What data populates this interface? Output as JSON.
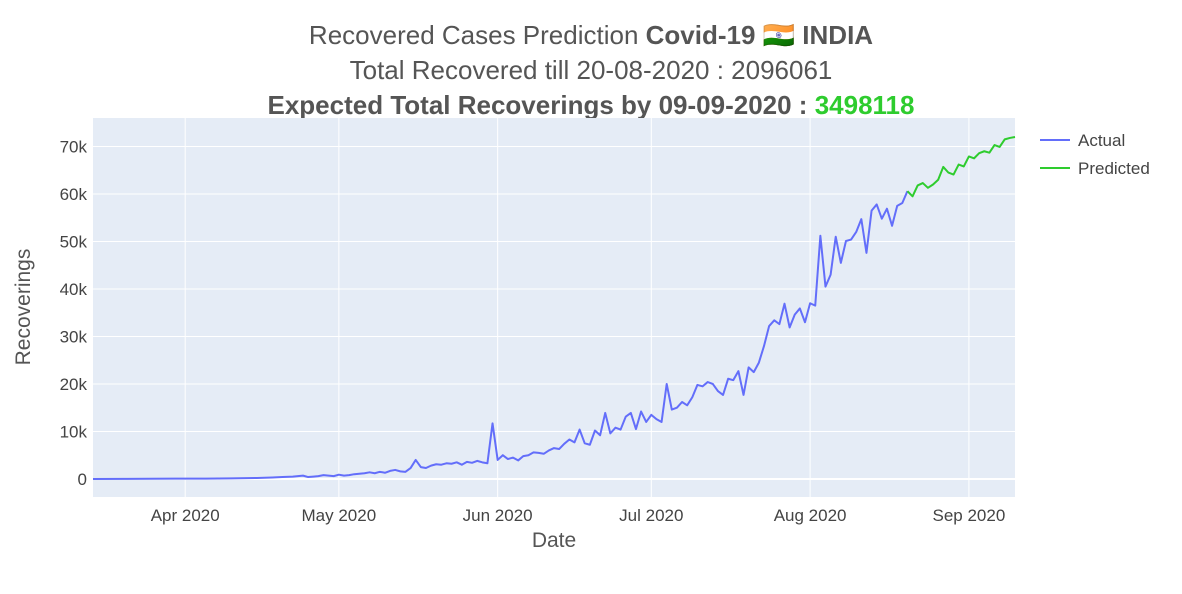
{
  "chart_data": {
    "type": "line",
    "title": {
      "line1_prefix": "Recovered Cases Prediction ",
      "line1_bold": "Covid-19",
      "line1_flag": "🇮🇳",
      "line1_country": "INDIA",
      "line2": "Total Recovered till 20-08-2020 : 2096061",
      "line3_prefix": "Expected Total Recoverings by 09-09-2020 : ",
      "line3_value": "3498118"
    },
    "xlabel": "Date",
    "ylabel": "Recoverings",
    "xlim": [
      "2020-03-14",
      "2020-09-10"
    ],
    "ylim": [
      -3800,
      76000
    ],
    "x_ticks": [
      {
        "date": "2020-04-01",
        "label": "Apr 2020"
      },
      {
        "date": "2020-05-01",
        "label": "May 2020"
      },
      {
        "date": "2020-06-01",
        "label": "Jun 2020"
      },
      {
        "date": "2020-07-01",
        "label": "Jul 2020"
      },
      {
        "date": "2020-08-01",
        "label": "Aug 2020"
      },
      {
        "date": "2020-09-01",
        "label": "Sep 2020"
      }
    ],
    "y_ticks": [
      {
        "value": 0,
        "label": "0"
      },
      {
        "value": 10000,
        "label": "10k"
      },
      {
        "value": 20000,
        "label": "20k"
      },
      {
        "value": 30000,
        "label": "30k"
      },
      {
        "value": 40000,
        "label": "40k"
      },
      {
        "value": 50000,
        "label": "50k"
      },
      {
        "value": 60000,
        "label": "60k"
      },
      {
        "value": 70000,
        "label": "70k"
      }
    ],
    "grid": true,
    "legend_position": "top-right",
    "colors": {
      "actual": "#636efa",
      "predicted": "#2ecc2e",
      "plot_bg": "#e5ecf6",
      "grid": "#ffffff",
      "highlight_value": "#2ecc2e"
    },
    "series": [
      {
        "name": "Actual",
        "points": [
          [
            "2020-03-14",
            0
          ],
          [
            "2020-03-20",
            20
          ],
          [
            "2020-03-25",
            30
          ],
          [
            "2020-03-30",
            60
          ],
          [
            "2020-04-05",
            80
          ],
          [
            "2020-04-10",
            120
          ],
          [
            "2020-04-15",
            200
          ],
          [
            "2020-04-18",
            300
          ],
          [
            "2020-04-20",
            400
          ],
          [
            "2020-04-22",
            500
          ],
          [
            "2020-04-24",
            700
          ],
          [
            "2020-04-25",
            400
          ],
          [
            "2020-04-26",
            500
          ],
          [
            "2020-04-27",
            600
          ],
          [
            "2020-04-28",
            800
          ],
          [
            "2020-04-29",
            700
          ],
          [
            "2020-04-30",
            600
          ],
          [
            "2020-05-01",
            900
          ],
          [
            "2020-05-02",
            700
          ],
          [
            "2020-05-03",
            800
          ],
          [
            "2020-05-04",
            1000
          ],
          [
            "2020-05-05",
            1100
          ],
          [
            "2020-05-06",
            1200
          ],
          [
            "2020-05-07",
            1400
          ],
          [
            "2020-05-08",
            1200
          ],
          [
            "2020-05-09",
            1500
          ],
          [
            "2020-05-10",
            1300
          ],
          [
            "2020-05-11",
            1700
          ],
          [
            "2020-05-12",
            1900
          ],
          [
            "2020-05-13",
            1600
          ],
          [
            "2020-05-14",
            1500
          ],
          [
            "2020-05-15",
            2300
          ],
          [
            "2020-05-16",
            4000
          ],
          [
            "2020-05-17",
            2500
          ],
          [
            "2020-05-18",
            2300
          ],
          [
            "2020-05-19",
            2800
          ],
          [
            "2020-05-20",
            3100
          ],
          [
            "2020-05-21",
            3000
          ],
          [
            "2020-05-22",
            3300
          ],
          [
            "2020-05-23",
            3200
          ],
          [
            "2020-05-24",
            3500
          ],
          [
            "2020-05-25",
            3000
          ],
          [
            "2020-05-26",
            3600
          ],
          [
            "2020-05-27",
            3400
          ],
          [
            "2020-05-28",
            3800
          ],
          [
            "2020-05-29",
            3500
          ],
          [
            "2020-05-30",
            3300
          ],
          [
            "2020-05-31",
            11700
          ],
          [
            "2020-06-01",
            4000
          ],
          [
            "2020-06-02",
            5000
          ],
          [
            "2020-06-03",
            4200
          ],
          [
            "2020-06-04",
            4500
          ],
          [
            "2020-06-05",
            3900
          ],
          [
            "2020-06-06",
            4800
          ],
          [
            "2020-06-07",
            5000
          ],
          [
            "2020-06-08",
            5600
          ],
          [
            "2020-06-09",
            5500
          ],
          [
            "2020-06-10",
            5300
          ],
          [
            "2020-06-11",
            6000
          ],
          [
            "2020-06-12",
            6500
          ],
          [
            "2020-06-13",
            6300
          ],
          [
            "2020-06-14",
            7400
          ],
          [
            "2020-06-15",
            8300
          ],
          [
            "2020-06-16",
            7700
          ],
          [
            "2020-06-17",
            10400
          ],
          [
            "2020-06-18",
            7500
          ],
          [
            "2020-06-19",
            7200
          ],
          [
            "2020-06-20",
            10200
          ],
          [
            "2020-06-21",
            9200
          ],
          [
            "2020-06-22",
            13900
          ],
          [
            "2020-06-23",
            9600
          ],
          [
            "2020-06-24",
            10800
          ],
          [
            "2020-06-25",
            10400
          ],
          [
            "2020-06-26",
            13100
          ],
          [
            "2020-06-27",
            13900
          ],
          [
            "2020-06-28",
            10500
          ],
          [
            "2020-06-29",
            14200
          ],
          [
            "2020-06-30",
            12000
          ],
          [
            "2020-07-01",
            13500
          ],
          [
            "2020-07-02",
            12600
          ],
          [
            "2020-07-03",
            12000
          ],
          [
            "2020-07-04",
            20000
          ],
          [
            "2020-07-05",
            14600
          ],
          [
            "2020-07-06",
            15000
          ],
          [
            "2020-07-07",
            16200
          ],
          [
            "2020-07-08",
            15500
          ],
          [
            "2020-07-09",
            17200
          ],
          [
            "2020-07-10",
            19800
          ],
          [
            "2020-07-11",
            19500
          ],
          [
            "2020-07-12",
            20400
          ],
          [
            "2020-07-13",
            20000
          ],
          [
            "2020-07-14",
            18500
          ],
          [
            "2020-07-15",
            17700
          ],
          [
            "2020-07-16",
            21100
          ],
          [
            "2020-07-17",
            20800
          ],
          [
            "2020-07-18",
            22700
          ],
          [
            "2020-07-19",
            17700
          ],
          [
            "2020-07-20",
            23500
          ],
          [
            "2020-07-21",
            22500
          ],
          [
            "2020-07-22",
            24500
          ],
          [
            "2020-07-23",
            28000
          ],
          [
            "2020-07-24",
            32200
          ],
          [
            "2020-07-25",
            33400
          ],
          [
            "2020-07-26",
            32600
          ],
          [
            "2020-07-27",
            36900
          ],
          [
            "2020-07-28",
            31900
          ],
          [
            "2020-07-29",
            34600
          ],
          [
            "2020-07-30",
            35900
          ],
          [
            "2020-07-31",
            33000
          ],
          [
            "2020-08-01",
            37000
          ],
          [
            "2020-08-02",
            36500
          ],
          [
            "2020-08-03",
            51200
          ],
          [
            "2020-08-04",
            40500
          ],
          [
            "2020-08-05",
            43000
          ],
          [
            "2020-08-06",
            51000
          ],
          [
            "2020-08-07",
            45500
          ],
          [
            "2020-08-08",
            50100
          ],
          [
            "2020-08-09",
            50400
          ],
          [
            "2020-08-10",
            52000
          ],
          [
            "2020-08-11",
            54700
          ],
          [
            "2020-08-12",
            47600
          ],
          [
            "2020-08-13",
            56500
          ],
          [
            "2020-08-14",
            57800
          ],
          [
            "2020-08-15",
            54800
          ],
          [
            "2020-08-16",
            56900
          ],
          [
            "2020-08-17",
            53300
          ],
          [
            "2020-08-18",
            57500
          ],
          [
            "2020-08-19",
            58100
          ],
          [
            "2020-08-20",
            60600
          ]
        ]
      },
      {
        "name": "Predicted",
        "points": [
          [
            "2020-08-20",
            60600
          ],
          [
            "2020-08-21",
            59500
          ],
          [
            "2020-08-22",
            61800
          ],
          [
            "2020-08-23",
            62300
          ],
          [
            "2020-08-24",
            61300
          ],
          [
            "2020-08-25",
            62000
          ],
          [
            "2020-08-26",
            63000
          ],
          [
            "2020-08-27",
            65700
          ],
          [
            "2020-08-28",
            64500
          ],
          [
            "2020-08-29",
            64100
          ],
          [
            "2020-08-30",
            66200
          ],
          [
            "2020-08-31",
            65800
          ],
          [
            "2020-09-01",
            67900
          ],
          [
            "2020-09-02",
            67500
          ],
          [
            "2020-09-03",
            68600
          ],
          [
            "2020-09-04",
            69000
          ],
          [
            "2020-09-05",
            68700
          ],
          [
            "2020-09-06",
            70300
          ],
          [
            "2020-09-07",
            69900
          ],
          [
            "2020-09-08",
            71500
          ],
          [
            "2020-09-09",
            71800
          ],
          [
            "2020-09-10",
            72000
          ]
        ]
      }
    ]
  }
}
